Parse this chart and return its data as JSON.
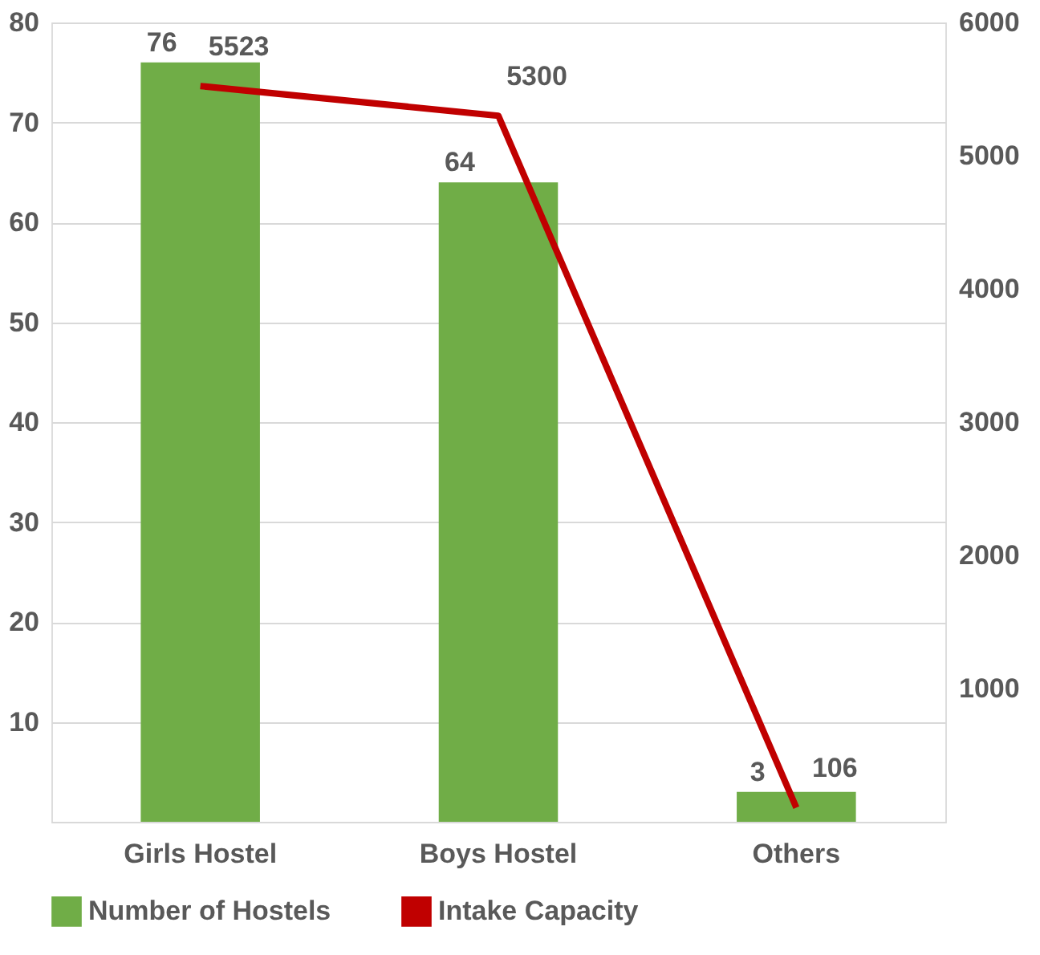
{
  "chart_data": {
    "type": "bar",
    "categories": [
      "Girls Hostel",
      "Boys Hostel",
      "Others"
    ],
    "series": [
      {
        "name": "Number of Hostels",
        "color": "#70ad47",
        "values": [
          76,
          64,
          3
        ]
      },
      {
        "name": "Intake Capacity",
        "type": "line",
        "axis": "y2",
        "color": "#c00000",
        "values": [
          5523,
          5300,
          106
        ]
      }
    ],
    "ylim": [
      0,
      80
    ],
    "yticks": [
      10,
      20,
      30,
      40,
      50,
      60,
      70,
      80
    ],
    "y2lim": [
      0,
      6000
    ],
    "y2ticks": [
      1000,
      2000,
      3000,
      4000,
      5000,
      6000
    ],
    "grid": "y",
    "legend": "bottom",
    "data_labels": true,
    "marker": "none",
    "line_style": "solid"
  }
}
